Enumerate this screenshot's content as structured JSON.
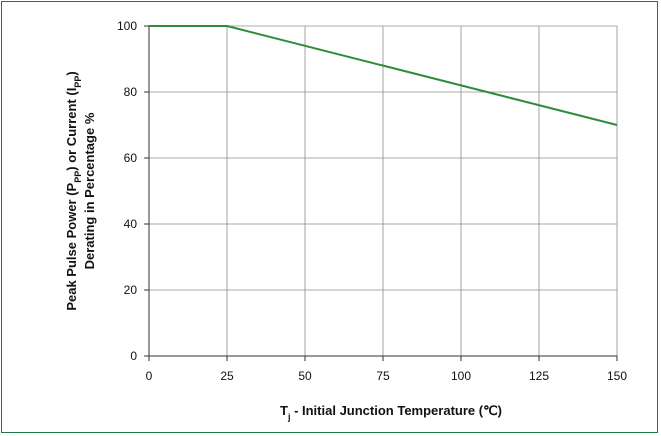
{
  "chart_data": {
    "type": "line",
    "title": "",
    "xlabel": {
      "parts": [
        {
          "text": "T",
          "sub": false
        },
        {
          "text": "j",
          "sub": true
        },
        {
          "text": " - Initial Junction Temperature (℃)",
          "sub": false
        }
      ]
    },
    "ylabel": {
      "line1": [
        {
          "text": "Peak Pulse Power (P",
          "sub": false
        },
        {
          "text": "PP",
          "sub": true
        },
        {
          "text": ") or Current (I",
          "sub": false
        },
        {
          "text": "PP",
          "sub": true
        },
        {
          "text": ")",
          "sub": false
        }
      ],
      "line2": "Derating in Percentage %"
    },
    "xlim": [
      0,
      150
    ],
    "ylim": [
      0,
      100
    ],
    "xticks": [
      0,
      25,
      50,
      75,
      100,
      125,
      150
    ],
    "yticks": [
      0,
      20,
      40,
      60,
      80,
      100
    ],
    "grid": true,
    "series": [
      {
        "color": "#2e8b3e",
        "x": [
          0,
          25,
          150
        ],
        "y": [
          100,
          100,
          70
        ]
      }
    ]
  },
  "colors": {
    "frame": "#1d7a4a",
    "grid": "#8c8c8c",
    "line": "#2e8b3e"
  }
}
